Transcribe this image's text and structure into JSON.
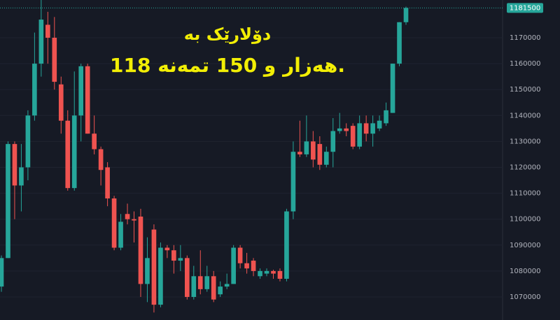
{
  "chart_data": {
    "type": "candlestick",
    "annotation_lines": [
      "دۆلارێک بە",
      "118 هەزار و 150 تمەنە."
    ],
    "up_color": "#26a69a",
    "down_color": "#ef5350",
    "annotation_color": "#f2ee05",
    "ylim": [
      1061100,
      1184560
    ],
    "yticks": [
      1070000,
      1080000,
      1090000,
      1100000,
      1110000,
      1120000,
      1130000,
      1140000,
      1150000,
      1160000,
      1170000
    ],
    "grid": true,
    "open": [
      1074000,
      1085000,
      1129000,
      1113000,
      1120000,
      1140000,
      1160000,
      1175000,
      1170000,
      1152000,
      1138000,
      1112000,
      1140000,
      1159000,
      1133000,
      1127000,
      1120000,
      1108000,
      1089000,
      1102000,
      1100000,
      1101000,
      1075000,
      1096000,
      1067000,
      1089000,
      1088000,
      1084000,
      1085000,
      1070000,
      1078000,
      1073000,
      1078000,
      1071000,
      1074000,
      1075000,
      1089000,
      1083000,
      1084000,
      1078000,
      1079000,
      1080000,
      1080000,
      1077000,
      1103000,
      1126000,
      1125000,
      1130000,
      1129000,
      1121000,
      1126000,
      1134000,
      1135000,
      1136000,
      1128000,
      1137000,
      1133000,
      1135000,
      1137000,
      1141000,
      1160000,
      1176000
    ],
    "high": [
      1086000,
      1130000,
      1130000,
      1129000,
      1142000,
      1172000,
      1185000,
      1180000,
      1178000,
      1155000,
      1142000,
      1157000,
      1160000,
      1160000,
      1140000,
      1128000,
      1122000,
      1109000,
      1102000,
      1106000,
      1103000,
      1104000,
      1093000,
      1098000,
      1091000,
      1090000,
      1090000,
      1090000,
      1086000,
      1082000,
      1088000,
      1082000,
      1080000,
      1076000,
      1079000,
      1090000,
      1090000,
      1087000,
      1085000,
      1081000,
      1081000,
      1080500,
      1081000,
      1104000,
      1130000,
      1138000,
      1140000,
      1134000,
      1132000,
      1128000,
      1139000,
      1141000,
      1137000,
      1137000,
      1140000,
      1140000,
      1140000,
      1140000,
      1145000,
      1160000,
      1176000,
      1182000
    ],
    "low": [
      1072000,
      1085000,
      1100000,
      1103000,
      1115000,
      1138000,
      1155000,
      1160000,
      1150000,
      1133000,
      1111000,
      1111000,
      1130000,
      1133000,
      1125000,
      1113000,
      1105000,
      1088000,
      1088000,
      1098000,
      1091000,
      1070000,
      1068000,
      1064000,
      1066000,
      1085000,
      1079000,
      1080000,
      1069000,
      1069000,
      1071000,
      1072000,
      1068000,
      1070000,
      1073000,
      1075000,
      1081000,
      1079000,
      1078000,
      1077000,
      1078000,
      1077000,
      1076000,
      1076000,
      1100000,
      1124000,
      1124000,
      1120000,
      1119000,
      1120000,
      1120000,
      1133000,
      1132000,
      1127000,
      1127000,
      1130000,
      1128000,
      1134000,
      1136000,
      1141000,
      1159000,
      1175000
    ],
    "close": [
      1085000,
      1129000,
      1113000,
      1120000,
      1140000,
      1160000,
      1177000,
      1170000,
      1153000,
      1138000,
      1112000,
      1140000,
      1159000,
      1133000,
      1127000,
      1119000,
      1108000,
      1089000,
      1099000,
      1100000,
      1099500,
      1075000,
      1085000,
      1067000,
      1089000,
      1088000,
      1084000,
      1085000,
      1070000,
      1078000,
      1073000,
      1078000,
      1069000,
      1074000,
      1075000,
      1089000,
      1083000,
      1081000,
      1080000,
      1080000,
      1080000,
      1079000,
      1077000,
      1103000,
      1126000,
      1125000,
      1130000,
      1123000,
      1121000,
      1126000,
      1134000,
      1135000,
      1134000,
      1128000,
      1137000,
      1133000,
      1137000,
      1138000,
      1142000,
      1160000,
      1176000,
      1181500
    ]
  }
}
